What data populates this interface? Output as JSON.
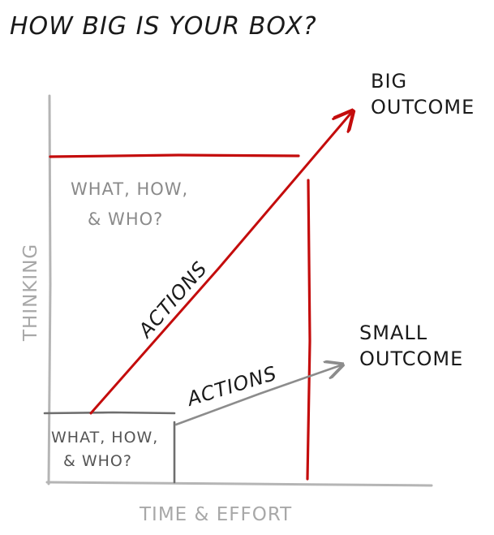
{
  "title": "HOW BIG IS YOUR BOX?",
  "axes": {
    "y_label": "THINKING",
    "x_label": "TIME & EFFORT"
  },
  "big_box": {
    "question_line1": "WHAT, HOW,",
    "question_line2": "& WHO?",
    "color": "#c40c0c"
  },
  "small_box": {
    "question_line1": "WHAT, HOW,",
    "question_line2": "& WHO?",
    "color": "#777777"
  },
  "big_arrow": {
    "label": "ACTIONS",
    "outcome_line1": "BIG",
    "outcome_line2": "OUTCOME",
    "color": "#c40c0c"
  },
  "small_arrow": {
    "label": "ACTIONS",
    "outcome_line1": "SMALL",
    "outcome_line2": "OUTCOME",
    "color": "#8c8c8c"
  }
}
